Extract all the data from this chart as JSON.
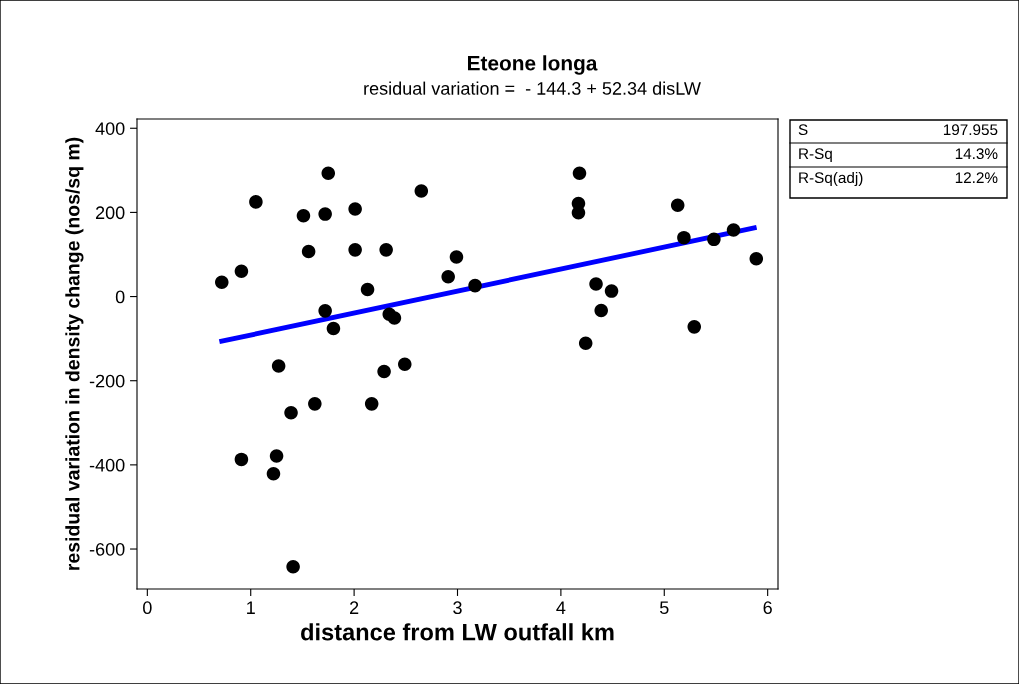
{
  "chart_data": {
    "type": "scatter",
    "title": "Eteone longa",
    "subtitle": "residual variation =  - 144.3 + 52.34 disLW",
    "xlabel": "distance from LW outfall km",
    "ylabel": "residual variation in density change (nos/sq m)",
    "series": [
      {
        "color": "#000000",
        "marker": "circle",
        "x": [
          1.75,
          1.05,
          2.65,
          1.51,
          1.72,
          2.01,
          1.56,
          2.01,
          2.31,
          0.91,
          0.72,
          2.99,
          2.91,
          2.13,
          1.72,
          1.8,
          2.34,
          2.39,
          1.27,
          2.29,
          2.49,
          1.62,
          1.39,
          2.17,
          0.91,
          1.25,
          1.22,
          1.41,
          3.17,
          4.18,
          4.17,
          4.17,
          5.13,
          5.19,
          5.48,
          5.67,
          5.89,
          4.34,
          4.49,
          4.39,
          4.24,
          5.29
        ],
        "values": [
          293,
          225,
          251,
          192,
          196,
          208,
          107,
          111,
          111,
          60,
          34,
          94,
          47,
          17,
          -34,
          -76,
          -42,
          -51,
          -165,
          -178,
          -161,
          -255,
          -276,
          -255,
          -387,
          -379,
          -421,
          -642,
          26,
          293,
          221,
          199,
          217,
          140,
          136,
          158,
          90,
          30,
          13,
          -33,
          -111,
          -72
        ]
      },
      {
        "type": "line",
        "color": "#0000ff",
        "x": [
          0.72,
          5.87
        ],
        "values": [
          -106,
          163
        ]
      }
    ],
    "xlim": [
      -0.1,
      6.1
    ],
    "ylim": [
      -695,
      422
    ],
    "xticks": [
      0,
      1,
      2,
      3,
      4,
      5,
      6
    ],
    "yticks": [
      -600,
      -400,
      -200,
      0,
      200,
      400
    ],
    "grid": false,
    "legend": false,
    "annotations": [
      "S",
      "197.955",
      "R-Sq",
      "14.3%",
      "R-Sq(adj)",
      "12.2%"
    ]
  }
}
